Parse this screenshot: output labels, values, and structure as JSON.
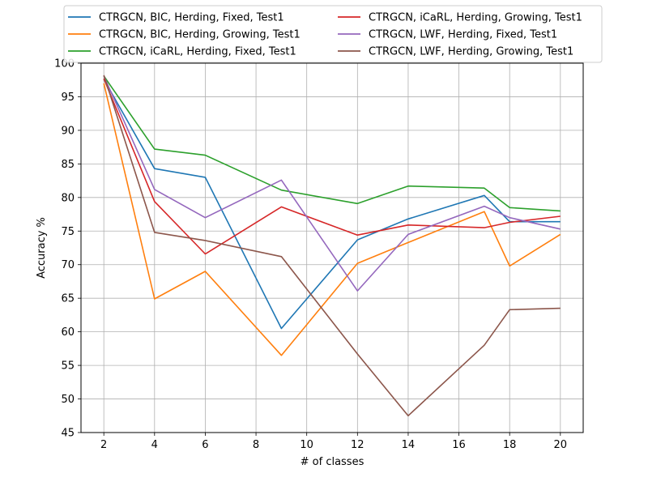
{
  "chart_data": {
    "type": "line",
    "title": "",
    "xlabel": "# of classes",
    "ylabel": "Accuracy %",
    "xlim": [
      1.1,
      20.9
    ],
    "ylim": [
      45,
      100
    ],
    "xticks": [
      2,
      4,
      6,
      8,
      10,
      12,
      14,
      16,
      18,
      20
    ],
    "yticks": [
      45,
      50,
      55,
      60,
      65,
      70,
      75,
      80,
      85,
      90,
      95,
      100
    ],
    "grid": true,
    "legend_position": "top-center",
    "legend_columns": 2,
    "x": [
      2,
      4,
      6,
      9,
      12,
      14,
      17,
      18,
      20
    ],
    "series": [
      {
        "name": "CTRGCN, BIC, Herding, Fixed, Test1",
        "color": "#1f77b4",
        "values": [
          97.6,
          84.3,
          83.0,
          60.5,
          73.7,
          76.8,
          80.3,
          76.4,
          76.4
        ]
      },
      {
        "name": "CTRGCN, BIC, Herding, Growing, Test1",
        "color": "#ff7f0e",
        "values": [
          97.0,
          64.9,
          69.0,
          56.5,
          70.2,
          73.3,
          77.9,
          69.8,
          74.5
        ]
      },
      {
        "name": "CTRGCN, iCaRL, Herding, Fixed, Test1",
        "color": "#2ca02c",
        "values": [
          98.1,
          87.2,
          86.3,
          81.1,
          79.1,
          81.7,
          81.4,
          78.5,
          78.0
        ]
      },
      {
        "name": "CTRGCN, iCaRL, Herding, Growing, Test1",
        "color": "#d62728",
        "values": [
          97.7,
          79.4,
          71.6,
          78.6,
          74.4,
          75.9,
          75.5,
          76.3,
          77.2
        ]
      },
      {
        "name": "CTRGCN, LWF, Herding, Fixed, Test1",
        "color": "#9467bd",
        "values": [
          98.1,
          81.2,
          77.0,
          82.6,
          66.1,
          74.5,
          78.7,
          77.0,
          75.3
        ]
      },
      {
        "name": "CTRGCN, LWF, Herding, Growing, Test1",
        "color": "#8c564b",
        "values": [
          98.2,
          74.8,
          73.6,
          71.2,
          56.7,
          47.5,
          58.0,
          63.3,
          63.5
        ]
      }
    ]
  }
}
